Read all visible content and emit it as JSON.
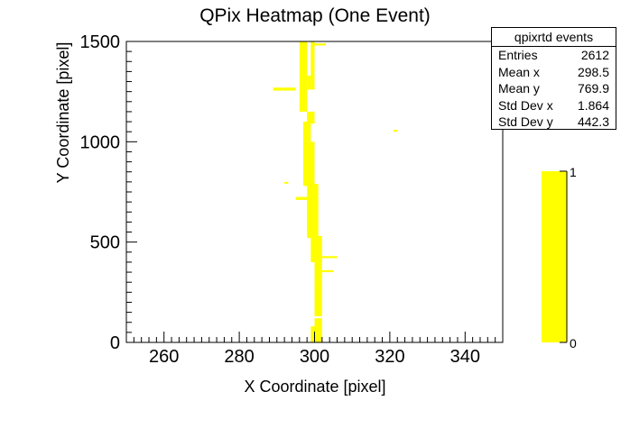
{
  "chart_data": {
    "type": "heatmap",
    "title": "QPix Heatmap (One Event)",
    "xlabel": "X Coordinate [pixel]",
    "ylabel": "Y Coordinate [pixel]",
    "xlim": [
      250,
      350
    ],
    "ylim": [
      0,
      1500
    ],
    "x_ticks": [
      260,
      280,
      300,
      320,
      340
    ],
    "y_ticks": [
      0,
      500,
      1000,
      1500
    ],
    "fill_color": "#ffff00",
    "grid": false,
    "colorbar": {
      "min": 0,
      "max": 1,
      "labels": [
        "0",
        "1"
      ],
      "color": "#ffff00"
    },
    "stats": {
      "title": "qpixrtd events",
      "rows": [
        {
          "label": "Entries",
          "value": "2612"
        },
        {
          "label": "Mean x",
          "value": "298.5"
        },
        {
          "label": "Mean y",
          "value": "769.9"
        },
        {
          "label": "Std Dev x",
          "value": "1.864"
        },
        {
          "label": "Std Dev y",
          "value": "442.3"
        }
      ]
    },
    "cells": [
      [
        296,
        298,
        1150,
        1500
      ],
      [
        298,
        299,
        1260,
        1330
      ],
      [
        298,
        300,
        1090,
        1150
      ],
      [
        299,
        300,
        1260,
        1500
      ],
      [
        300,
        303,
        1480,
        1490
      ],
      [
        289,
        295,
        1255,
        1270
      ],
      [
        297,
        299,
        1000,
        1100
      ],
      [
        297,
        300,
        780,
        1000
      ],
      [
        295,
        298,
        710,
        725
      ],
      [
        298,
        301,
        520,
        790
      ],
      [
        292,
        293,
        790,
        800
      ],
      [
        299,
        302,
        400,
        530
      ],
      [
        302,
        306,
        420,
        430
      ],
      [
        300,
        302,
        290,
        410
      ],
      [
        302,
        305,
        350,
        360
      ],
      [
        300,
        302,
        200,
        290
      ],
      [
        300,
        302,
        130,
        210
      ],
      [
        300,
        302,
        0,
        120
      ],
      [
        299,
        300,
        0,
        80
      ],
      [
        321,
        322,
        1050,
        1060
      ]
    ]
  }
}
